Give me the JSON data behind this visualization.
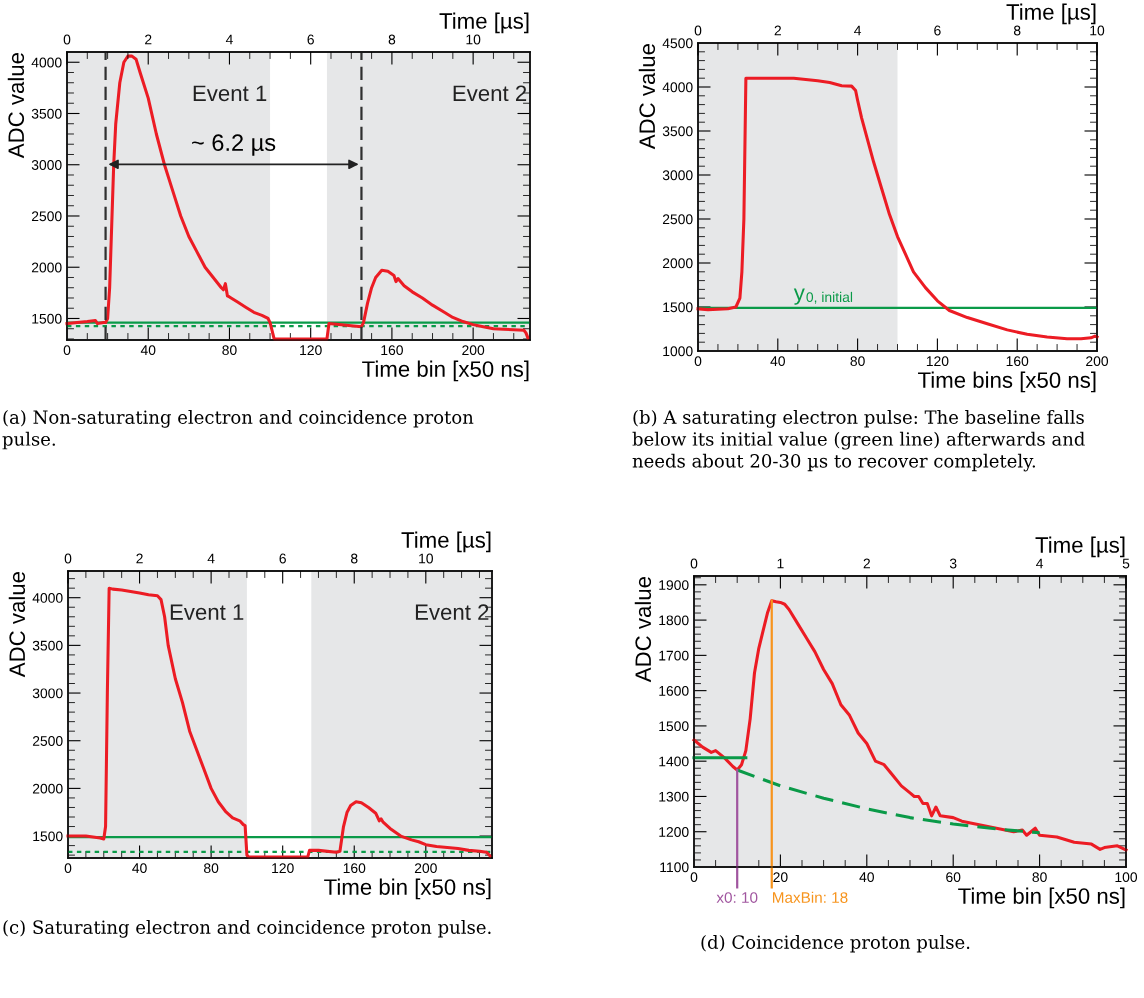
{
  "chart_data": [
    {
      "type": "line",
      "xlabel": "Time bin [x50 ns]",
      "ylabel": "ADC value",
      "x2label": "Time [µs]",
      "xlim": [
        0,
        228
      ],
      "xticks": [
        0,
        40,
        80,
        120,
        160,
        200
      ],
      "ylim": [
        1290,
        4100
      ],
      "yticks": [
        1500,
        2000,
        2500,
        3000,
        3500,
        4000
      ],
      "x2lim": [
        0,
        11.4
      ],
      "x2ticks": [
        0,
        2,
        4,
        6,
        8,
        10
      ],
      "grid": false,
      "bands": [
        {
          "axis": "x",
          "from": 0,
          "to": 100,
          "label": "Event 1",
          "color": "#e6e7e8"
        },
        {
          "axis": "x",
          "from": 128,
          "to": 228,
          "label": "Event 2",
          "color": "#e6e7e8"
        }
      ],
      "ref_lines": [
        {
          "axis": "x",
          "value": 19,
          "color": "#303030",
          "line_style": "dashed"
        },
        {
          "axis": "x",
          "value": 145,
          "color": "#303030",
          "line_style": "dashed"
        },
        {
          "axis": "y",
          "value": 1460,
          "color": "#0a9a48",
          "line_style": "solid"
        },
        {
          "axis": "y",
          "value": 1425,
          "color": "#0a9a48",
          "line_style": "dotted"
        }
      ],
      "series": [
        {
          "color": "#ec1c24",
          "x": [
            0,
            10,
            14,
            15,
            18,
            19,
            20,
            21,
            22,
            23,
            24,
            26,
            28,
            30,
            32,
            34,
            36,
            40,
            44,
            48,
            52,
            56,
            60,
            64,
            68,
            72,
            76,
            77,
            78,
            79,
            80,
            84,
            88,
            92,
            96,
            99,
            100,
            102,
            128,
            129,
            140,
            145,
            146,
            148,
            150,
            152,
            155,
            158,
            161,
            162,
            163,
            166,
            170,
            175,
            180,
            185,
            190,
            195,
            200,
            205,
            210,
            215,
            220,
            225,
            226,
            227
          ],
          "values": [
            1450,
            1470,
            1480,
            1450,
            1460,
            1460,
            1500,
            1800,
            2400,
            3000,
            3400,
            3800,
            4000,
            4060,
            4060,
            4030,
            3900,
            3650,
            3300,
            3000,
            2750,
            2500,
            2300,
            2150,
            2000,
            1900,
            1800,
            1780,
            1840,
            1720,
            1710,
            1660,
            1610,
            1560,
            1530,
            1500,
            1460,
            1300,
            1300,
            1450,
            1430,
            1420,
            1460,
            1650,
            1800,
            1900,
            1970,
            1960,
            1920,
            1860,
            1890,
            1820,
            1760,
            1700,
            1630,
            1570,
            1510,
            1470,
            1440,
            1420,
            1400,
            1395,
            1390,
            1385,
            1360,
            1310
          ]
        }
      ],
      "annotations": [
        "~ 6.2 µs",
        "(a) Non-saturating electron and coincidence proton pulse."
      ]
    },
    {
      "type": "line",
      "xlabel": "Time bins [x50 ns]",
      "ylabel": "ADC value",
      "x2label": "Time [µs]",
      "xlim": [
        0,
        200
      ],
      "xticks": [
        0,
        40,
        80,
        120,
        160,
        200
      ],
      "ylim": [
        1000,
        4500
      ],
      "yticks": [
        1000,
        1500,
        2000,
        2500,
        3000,
        3500,
        4000,
        4500
      ],
      "x2lim": [
        0,
        10
      ],
      "x2ticks": [
        0,
        2,
        4,
        6,
        8,
        10
      ],
      "grid": false,
      "bands": [
        {
          "axis": "x",
          "from": 0,
          "to": 100,
          "color": "#e6e7e8"
        }
      ],
      "ref_lines": [
        {
          "axis": "y",
          "value": 1490,
          "label": "y$_{0, initial}$",
          "color": "#0a9a48",
          "line_style": "solid"
        }
      ],
      "series": [
        {
          "color": "#ec1c24",
          "x": [
            0,
            5,
            15,
            19,
            21,
            22,
            23,
            24,
            48,
            60,
            66,
            72,
            77,
            79,
            80,
            82,
            85,
            88,
            92,
            96,
            100,
            104,
            108,
            114,
            120,
            126,
            135,
            145,
            155,
            165,
            175,
            185,
            192,
            197,
            199,
            200
          ],
          "values": [
            1480,
            1470,
            1480,
            1500,
            1600,
            1900,
            2500,
            4100,
            4100,
            4070,
            4050,
            4015,
            4010,
            3960,
            3850,
            3650,
            3400,
            3150,
            2850,
            2550,
            2300,
            2100,
            1900,
            1720,
            1570,
            1460,
            1380,
            1310,
            1240,
            1190,
            1160,
            1140,
            1140,
            1150,
            1170,
            1160
          ]
        }
      ],
      "annotations": [
        "(b) A saturating electron pulse: The baseline falls below its initial value (green line) afterwards and needs about 20-30 µs to recover completely."
      ]
    },
    {
      "type": "line",
      "xlabel": "Time bin [x50 ns]",
      "ylabel": "ADC value",
      "x2label": "Time [µs]",
      "xlim": [
        0,
        237
      ],
      "xticks": [
        0,
        40,
        80,
        120,
        160,
        200
      ],
      "ylim": [
        1270,
        4280
      ],
      "yticks": [
        1500,
        2000,
        2500,
        3000,
        3500,
        4000
      ],
      "x2lim": [
        0,
        11.85
      ],
      "x2ticks": [
        0,
        2,
        4,
        6,
        8,
        10
      ],
      "grid": false,
      "bands": [
        {
          "axis": "x",
          "from": 0,
          "to": 100,
          "label": "Event 1",
          "color": "#e6e7e8"
        },
        {
          "axis": "x",
          "from": 136,
          "to": 237,
          "label": "Event 2",
          "color": "#e6e7e8"
        }
      ],
      "ref_lines": [
        {
          "axis": "y",
          "value": 1490,
          "color": "#0a9a48",
          "line_style": "solid"
        },
        {
          "axis": "y",
          "value": 1335,
          "color": "#0a9a48",
          "line_style": "dotted"
        }
      ],
      "series": [
        {
          "color": "#ec1c24",
          "x": [
            0,
            10,
            18,
            20,
            21,
            22,
            23,
            25,
            30,
            40,
            45,
            50,
            52,
            54,
            56,
            60,
            64,
            68,
            72,
            76,
            80,
            84,
            88,
            92,
            96,
            98,
            99,
            100,
            101,
            134,
            135,
            140,
            150,
            152,
            154,
            156,
            158,
            161,
            164,
            168,
            172,
            174,
            175,
            176,
            180,
            186,
            192,
            196,
            200,
            206,
            212,
            218,
            224,
            230,
            234,
            236
          ],
          "values": [
            1500,
            1500,
            1480,
            1470,
            1600,
            3000,
            4100,
            4090,
            4080,
            4050,
            4030,
            4020,
            3980,
            3800,
            3500,
            3150,
            2900,
            2600,
            2400,
            2200,
            2000,
            1860,
            1760,
            1690,
            1660,
            1620,
            1610,
            1300,
            1280,
            1280,
            1350,
            1350,
            1330,
            1340,
            1600,
            1750,
            1820,
            1860,
            1850,
            1800,
            1740,
            1660,
            1680,
            1650,
            1580,
            1500,
            1460,
            1440,
            1410,
            1390,
            1380,
            1370,
            1350,
            1340,
            1330,
            1290
          ]
        }
      ],
      "annotations": [
        "(c) Saturating electron and coincidence proton pulse."
      ]
    },
    {
      "type": "line",
      "xlabel": "Time bin [x50 ns]",
      "ylabel": "ADC value",
      "x2label": "Time [µs]",
      "xlim": [
        0,
        100
      ],
      "xticks": [
        0,
        20,
        40,
        60,
        80,
        100
      ],
      "ylim": [
        1100,
        1925
      ],
      "yticks": [
        1100,
        1200,
        1300,
        1400,
        1500,
        1600,
        1700,
        1800,
        1900
      ],
      "x2lim": [
        0,
        5
      ],
      "x2ticks": [
        0,
        1,
        2,
        3,
        4,
        5
      ],
      "grid": false,
      "bands": [
        {
          "axis": "x",
          "from": 0,
          "to": 100,
          "color": "#e6e7e8"
        }
      ],
      "ref_lines": [
        {
          "axis": "x",
          "value": 10,
          "label": "x0: 10",
          "color": "#a0559f",
          "line_style": "solid"
        },
        {
          "axis": "x",
          "value": 18,
          "label": "MaxBin: 18",
          "color": "#f7941d",
          "line_style": "solid"
        }
      ],
      "series": [
        {
          "color": "#ec1c24",
          "x": [
            0,
            2,
            4,
            5,
            7,
            9,
            10,
            11,
            12,
            13,
            14,
            15,
            16,
            17,
            18,
            19,
            20,
            21,
            22,
            24,
            26,
            28,
            30,
            32,
            34,
            36,
            38,
            40,
            42,
            44,
            46,
            48,
            50,
            51,
            52,
            53,
            54,
            55,
            56,
            57,
            60,
            62,
            66,
            70,
            74,
            76,
            77,
            79,
            80,
            84,
            88,
            92,
            94,
            95,
            98,
            100
          ],
          "values": [
            1460,
            1440,
            1425,
            1430,
            1410,
            1385,
            1375,
            1390,
            1430,
            1520,
            1650,
            1720,
            1770,
            1820,
            1855,
            1852,
            1850,
            1845,
            1830,
            1790,
            1750,
            1710,
            1660,
            1620,
            1560,
            1530,
            1480,
            1450,
            1400,
            1390,
            1360,
            1330,
            1310,
            1300,
            1300,
            1280,
            1280,
            1245,
            1270,
            1245,
            1240,
            1230,
            1220,
            1210,
            1200,
            1205,
            1190,
            1210,
            1190,
            1185,
            1170,
            1165,
            1150,
            1155,
            1160,
            1148
          ]
        },
        {
          "color": "#0a9a48",
          "x": [
            0,
            12
          ],
          "values": [
            1410,
            1410
          ]
        },
        {
          "color": "#0a9a48",
          "line_style": "dashed",
          "x": [
            10,
            20,
            30,
            40,
            50,
            60,
            70,
            80
          ],
          "values": [
            1375,
            1330,
            1295,
            1265,
            1240,
            1222,
            1208,
            1197
          ]
        }
      ],
      "annotations": [
        "(d) Coincidence proton pulse."
      ]
    }
  ]
}
